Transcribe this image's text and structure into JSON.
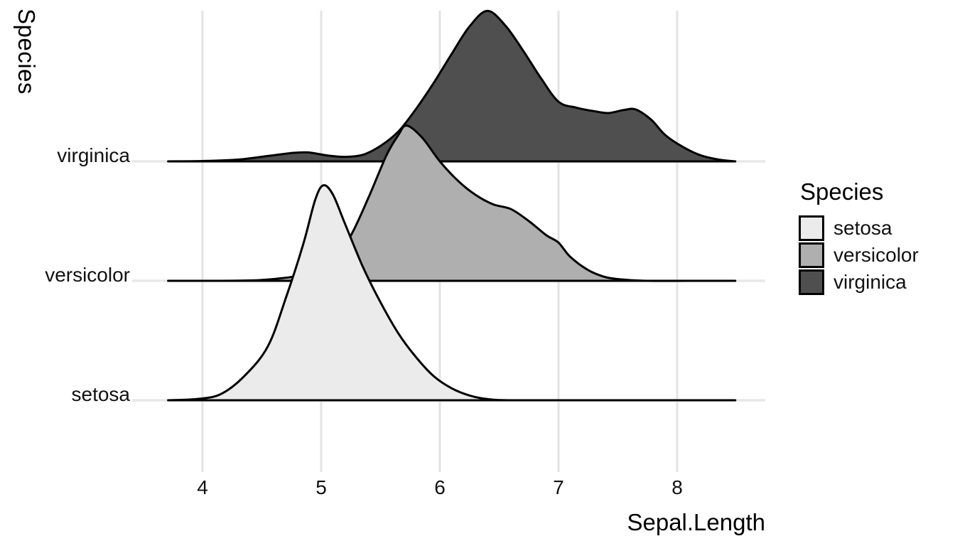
{
  "chart": {
    "y_axis_title": "Species",
    "x_axis_title": "Sepal.Length",
    "row_labels": [
      "setosa",
      "versicolor",
      "virginica"
    ],
    "x_tick_labels": [
      "4",
      "5",
      "6",
      "7",
      "8"
    ],
    "legend": {
      "title": "Species",
      "items": [
        {
          "label": "setosa",
          "color": "#EBEBEB"
        },
        {
          "label": "versicolor",
          "color": "#AFAFAF"
        },
        {
          "label": "virginica",
          "color": "#4F4F4F"
        }
      ]
    }
  },
  "chart_data": {
    "type": "area",
    "subtype": "ridgeline-density",
    "title": "",
    "xlabel": "Sepal.Length",
    "ylabel": "Species",
    "x_ticks": [
      4,
      5,
      6,
      7,
      8
    ],
    "x_panel_range": [
      3.41,
      8.74
    ],
    "curve_x_range": [
      3.71,
      8.49
    ],
    "rows_bottom_to_top": [
      "setosa",
      "versicolor",
      "virginica"
    ],
    "grid": "light vertical major gridlines and a light horizontal baseline per species row",
    "legend_position": "right",
    "outline_color": "#000000",
    "gridline_color": "#E3E3E3",
    "baseline_color": "#E8E8E8",
    "height_units": "density height as multiple of row spacing",
    "series": [
      {
        "name": "setosa",
        "fill": "#EBEBEB",
        "points": [
          [
            3.71,
            0
          ],
          [
            3.95,
            0.01
          ],
          [
            4.15,
            0.05
          ],
          [
            4.35,
            0.2
          ],
          [
            4.55,
            0.45
          ],
          [
            4.7,
            0.85
          ],
          [
            4.85,
            1.31
          ],
          [
            4.95,
            1.68
          ],
          [
            5.02,
            1.8
          ],
          [
            5.1,
            1.72
          ],
          [
            5.2,
            1.48
          ],
          [
            5.35,
            1.12
          ],
          [
            5.5,
            0.82
          ],
          [
            5.65,
            0.56
          ],
          [
            5.8,
            0.36
          ],
          [
            5.95,
            0.2
          ],
          [
            6.1,
            0.1
          ],
          [
            6.25,
            0.04
          ],
          [
            6.4,
            0.01
          ],
          [
            6.6,
            0
          ],
          [
            7.2,
            0
          ],
          [
            7.9,
            0
          ],
          [
            8.49,
            0
          ]
        ]
      },
      {
        "name": "versicolor",
        "fill": "#AFAFAF",
        "points": [
          [
            3.71,
            0
          ],
          [
            4.1,
            0
          ],
          [
            4.45,
            0.005
          ],
          [
            4.65,
            0.02
          ],
          [
            4.8,
            0.04
          ],
          [
            4.95,
            0.07
          ],
          [
            5.1,
            0.17
          ],
          [
            5.25,
            0.38
          ],
          [
            5.4,
            0.7
          ],
          [
            5.55,
            1.05
          ],
          [
            5.65,
            1.22
          ],
          [
            5.72,
            1.3
          ],
          [
            5.85,
            1.2
          ],
          [
            6.0,
            1.0
          ],
          [
            6.15,
            0.84
          ],
          [
            6.3,
            0.72
          ],
          [
            6.45,
            0.64
          ],
          [
            6.6,
            0.6
          ],
          [
            6.75,
            0.5
          ],
          [
            6.9,
            0.38
          ],
          [
            7.0,
            0.32
          ],
          [
            7.1,
            0.2
          ],
          [
            7.25,
            0.09
          ],
          [
            7.4,
            0.03
          ],
          [
            7.55,
            0.01
          ],
          [
            7.75,
            0
          ],
          [
            8.1,
            0
          ],
          [
            8.49,
            0
          ]
        ]
      },
      {
        "name": "virginica",
        "fill": "#4F4F4F",
        "points": [
          [
            3.71,
            0
          ],
          [
            4.0,
            0.003
          ],
          [
            4.3,
            0.015
          ],
          [
            4.55,
            0.045
          ],
          [
            4.75,
            0.07
          ],
          [
            4.89,
            0.075
          ],
          [
            5.05,
            0.05
          ],
          [
            5.2,
            0.038
          ],
          [
            5.35,
            0.055
          ],
          [
            5.5,
            0.13
          ],
          [
            5.65,
            0.25
          ],
          [
            5.8,
            0.44
          ],
          [
            5.95,
            0.66
          ],
          [
            6.1,
            0.9
          ],
          [
            6.25,
            1.13
          ],
          [
            6.4,
            1.26
          ],
          [
            6.55,
            1.14
          ],
          [
            6.7,
            0.93
          ],
          [
            6.85,
            0.7
          ],
          [
            7.0,
            0.5
          ],
          [
            7.15,
            0.45
          ],
          [
            7.3,
            0.42
          ],
          [
            7.42,
            0.405
          ],
          [
            7.55,
            0.43
          ],
          [
            7.65,
            0.435
          ],
          [
            7.78,
            0.35
          ],
          [
            7.9,
            0.22
          ],
          [
            8.05,
            0.12
          ],
          [
            8.2,
            0.05
          ],
          [
            8.35,
            0.015
          ],
          [
            8.49,
            0
          ]
        ]
      }
    ]
  }
}
